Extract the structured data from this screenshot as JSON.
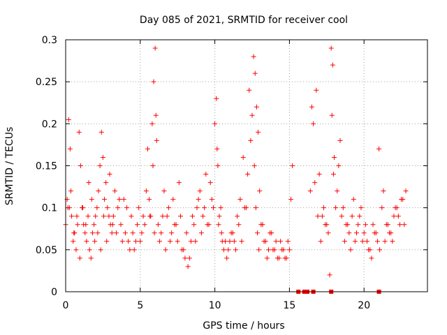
{
  "chart_data": {
    "type": "scatter",
    "title": "Day 085 of 2021, SRMTID for receiver cool",
    "xlabel": "GPS time / hours",
    "ylabel": "SRMTID / TECUs",
    "xlim": [
      0,
      24.25
    ],
    "ylim": [
      0,
      0.3
    ],
    "grid": true,
    "marker": "plus",
    "color": "#ff0000",
    "x_ticks": [
      0,
      5,
      10,
      15,
      20
    ],
    "x_tick_labels": [
      "0",
      "5",
      "10",
      "15",
      "20"
    ],
    "y_ticks": [
      0,
      0.05,
      0.1,
      0.15,
      0.2,
      0.25,
      0.3
    ],
    "y_tick_labels": [
      "0",
      "0.05",
      "0.1",
      "0.15",
      "0.2",
      "0.25",
      "0.3"
    ],
    "zero_markers_x": [
      15.6,
      16.0,
      16.2,
      16.6,
      17.8,
      21.0
    ],
    "series": [
      {
        "name": "SRMTID",
        "x": [
          0.0,
          0.1,
          0.2,
          0.25,
          0.3,
          0.4,
          0.5,
          0.6,
          0.7,
          0.8,
          0.9,
          1.0,
          1.1,
          1.2,
          1.3,
          1.4,
          1.5,
          1.6,
          1.7,
          1.8,
          1.9,
          2.0,
          2.1,
          2.2,
          2.3,
          2.4,
          2.5,
          2.6,
          2.7,
          2.8,
          2.9,
          3.0,
          3.1,
          3.2,
          3.3,
          3.5,
          3.7,
          3.9,
          4.0,
          4.2,
          4.4,
          4.6,
          4.8,
          5.0,
          5.2,
          5.4,
          5.5,
          5.6,
          5.7,
          5.8,
          5.9,
          6.0,
          6.1,
          6.2,
          6.4,
          6.6,
          6.8,
          7.0,
          7.2,
          7.4,
          7.6,
          7.8,
          8.0,
          8.2,
          8.4,
          8.6,
          8.8,
          9.0,
          9.2,
          9.4,
          9.6,
          9.8,
          10.0,
          10.1,
          10.2,
          10.3,
          10.4,
          10.5,
          10.6,
          10.8,
          11.0,
          11.2,
          11.4,
          11.6,
          11.8,
          12.0,
          12.2,
          12.4,
          12.6,
          12.7,
          12.8,
          12.9,
          13.0,
          13.2,
          13.4,
          13.6,
          13.8,
          14.0,
          14.2,
          14.4,
          14.6,
          14.8,
          15.0,
          15.2,
          16.4,
          16.6,
          16.8,
          17.0,
          17.2,
          17.4,
          17.6,
          17.8,
          17.9,
          18.0,
          18.2,
          18.4,
          18.6,
          18.8,
          19.0,
          19.2,
          19.4,
          19.6,
          19.8,
          20.0,
          20.2,
          20.4,
          20.6,
          20.8,
          21.0,
          21.2,
          21.4,
          21.6,
          21.8,
          22.0,
          22.2,
          22.4,
          22.6,
          22.8,
          0.15,
          0.35,
          0.55,
          0.75,
          0.95,
          1.15,
          1.35,
          1.55,
          1.75,
          1.95,
          2.15,
          2.35,
          2.55,
          2.75,
          2.95,
          3.15,
          3.4,
          3.6,
          3.8,
          4.1,
          4.3,
          4.5,
          4.7,
          4.9,
          5.1,
          5.3,
          5.65,
          5.85,
          5.95,
          6.05,
          6.3,
          6.5,
          6.7,
          6.9,
          7.1,
          7.3,
          7.5,
          7.7,
          7.9,
          8.1,
          8.3,
          8.5,
          8.7,
          8.9,
          9.1,
          9.3,
          9.5,
          9.7,
          9.9,
          10.15,
          10.25,
          10.45,
          10.7,
          10.9,
          11.1,
          11.3,
          11.5,
          11.7,
          11.9,
          12.1,
          12.3,
          12.5,
          12.65,
          12.75,
          12.85,
          12.95,
          13.1,
          13.3,
          13.5,
          13.7,
          13.9,
          14.1,
          14.3,
          14.5,
          14.7,
          14.9,
          15.1,
          16.5,
          16.7,
          16.9,
          17.1,
          17.3,
          17.5,
          17.7,
          17.85,
          17.95,
          18.1,
          18.3,
          18.5,
          18.7,
          18.9,
          19.1,
          19.3,
          19.5,
          19.7,
          19.9,
          20.1,
          20.3,
          20.5,
          20.7,
          20.9,
          21.05,
          21.3,
          21.5,
          21.7,
          21.9,
          22.1,
          22.3,
          22.5,
          22.7
        ],
        "y": [
          0.08,
          0.11,
          0.205,
          0.1,
          0.17,
          0.09,
          0.06,
          0.07,
          0.05,
          0.08,
          0.19,
          0.15,
          0.1,
          0.08,
          0.07,
          0.06,
          0.09,
          0.05,
          0.04,
          0.07,
          0.08,
          0.09,
          0.1,
          0.12,
          0.15,
          0.19,
          0.16,
          0.11,
          0.13,
          0.1,
          0.09,
          0.08,
          0.07,
          0.09,
          0.12,
          0.1,
          0.08,
          0.11,
          0.07,
          0.06,
          0.09,
          0.05,
          0.08,
          0.06,
          0.09,
          0.12,
          0.17,
          0.11,
          0.09,
          0.2,
          0.25,
          0.29,
          0.18,
          0.08,
          0.07,
          0.12,
          0.09,
          0.06,
          0.11,
          0.08,
          0.13,
          0.05,
          0.04,
          0.03,
          0.06,
          0.08,
          0.1,
          0.12,
          0.09,
          0.14,
          0.08,
          0.11,
          0.2,
          0.23,
          0.15,
          0.09,
          0.1,
          0.06,
          0.05,
          0.04,
          0.06,
          0.07,
          0.05,
          0.08,
          0.06,
          0.1,
          0.14,
          0.18,
          0.28,
          0.26,
          0.22,
          0.19,
          0.12,
          0.08,
          0.06,
          0.05,
          0.07,
          0.05,
          0.04,
          0.06,
          0.05,
          0.04,
          0.05,
          0.15,
          0.12,
          0.2,
          0.24,
          0.14,
          0.09,
          0.08,
          0.07,
          0.29,
          0.27,
          0.16,
          0.12,
          0.18,
          0.1,
          0.08,
          0.07,
          0.09,
          0.06,
          0.08,
          0.1,
          0.07,
          0.06,
          0.05,
          0.08,
          0.07,
          0.17,
          0.1,
          0.06,
          0.08,
          0.07,
          0.09,
          0.1,
          0.08,
          0.11,
          0.12,
          0.1,
          0.12,
          0.07,
          0.09,
          0.04,
          0.1,
          0.08,
          0.13,
          0.11,
          0.06,
          0.07,
          0.05,
          0.09,
          0.06,
          0.14,
          0.08,
          0.07,
          0.11,
          0.06,
          0.1,
          0.05,
          0.07,
          0.06,
          0.1,
          0.07,
          0.08,
          0.09,
          0.15,
          0.07,
          0.21,
          0.06,
          0.09,
          0.05,
          0.1,
          0.07,
          0.08,
          0.06,
          0.09,
          0.05,
          0.07,
          0.04,
          0.09,
          0.06,
          0.11,
          0.07,
          0.1,
          0.08,
          0.13,
          0.1,
          0.17,
          0.08,
          0.07,
          0.06,
          0.05,
          0.07,
          0.06,
          0.09,
          0.11,
          0.16,
          0.1,
          0.24,
          0.21,
          0.15,
          0.1,
          0.07,
          0.05,
          0.08,
          0.06,
          0.04,
          0.07,
          0.05,
          0.06,
          0.04,
          0.05,
          0.04,
          0.06,
          0.11,
          0.22,
          0.13,
          0.09,
          0.06,
          0.1,
          0.08,
          0.02,
          0.21,
          0.14,
          0.1,
          0.15,
          0.09,
          0.06,
          0.08,
          0.05,
          0.11,
          0.07,
          0.09,
          0.06,
          0.08,
          0.05,
          0.04,
          0.07,
          0.06,
          0.05,
          0.12,
          0.08,
          0.07,
          0.06,
          0.1,
          0.09,
          0.11,
          0.08
        ]
      }
    ]
  }
}
